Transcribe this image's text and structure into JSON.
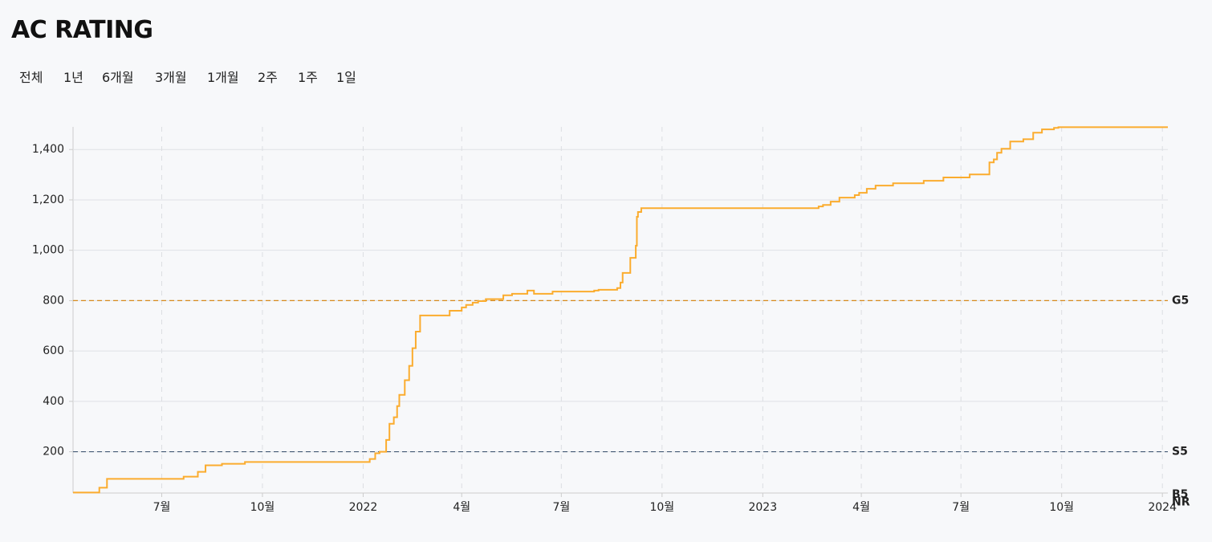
{
  "header": {
    "title": "AC RATING"
  },
  "tabs": [
    "전체",
    "1년",
    "6개월",
    "3개월",
    "1개월",
    "2주",
    "1주",
    "1일"
  ],
  "chart_data": {
    "type": "line",
    "step": true,
    "color": "#fbac2e",
    "x": [
      "2021-04-11",
      "2021-05-05",
      "2021-05-12",
      "2021-07-21",
      "2021-08-03",
      "2021-08-10",
      "2021-08-25",
      "2021-09-15",
      "2022-01-07",
      "2022-01-12",
      "2022-01-16",
      "2022-01-22",
      "2022-01-25",
      "2022-01-29",
      "2022-02-01",
      "2022-02-03",
      "2022-02-08",
      "2022-02-12",
      "2022-02-15",
      "2022-02-18",
      "2022-02-22",
      "2022-03-21",
      "2022-04-01",
      "2022-04-05",
      "2022-04-11",
      "2022-04-16",
      "2022-04-23",
      "2022-05-09",
      "2022-05-17",
      "2022-05-31",
      "2022-06-06",
      "2022-06-23",
      "2022-07-31",
      "2022-08-04",
      "2022-08-21",
      "2022-08-24",
      "2022-08-26",
      "2022-09-02",
      "2022-09-07",
      "2022-09-08",
      "2022-09-09",
      "2022-09-12",
      "2023-02-21",
      "2023-02-25",
      "2023-03-04",
      "2023-03-12",
      "2023-03-26",
      "2023-03-30",
      "2023-04-06",
      "2023-04-14",
      "2023-04-30",
      "2023-05-28",
      "2023-06-15",
      "2023-07-09",
      "2023-07-27",
      "2023-07-31",
      "2023-08-03",
      "2023-08-07",
      "2023-08-15",
      "2023-08-27",
      "2023-09-05",
      "2023-09-13",
      "2023-09-24",
      "2023-09-28"
    ],
    "values": [
      38,
      57,
      92,
      101,
      120,
      146,
      152,
      159,
      171,
      194,
      200,
      247,
      311,
      337,
      381,
      426,
      484,
      541,
      611,
      677,
      741,
      760,
      773,
      783,
      792,
      798,
      806,
      821,
      827,
      840,
      827,
      836,
      840,
      843,
      850,
      872,
      910,
      970,
      1018,
      1133,
      1152,
      1167,
      1174,
      1180,
      1193,
      1209,
      1219,
      1228,
      1244,
      1257,
      1266,
      1276,
      1289,
      1301,
      1349,
      1361,
      1387,
      1403,
      1432,
      1441,
      1467,
      1480,
      1486,
      1489
    ],
    "xlim": [
      "2021-04-11",
      "2024-01-06"
    ],
    "xticks": [
      {
        "value": "2021-07-01",
        "label": "7월"
      },
      {
        "value": "2021-10-01",
        "label": "10월"
      },
      {
        "value": "2022-01-01",
        "label": "2022"
      },
      {
        "value": "2022-04-01",
        "label": "4월"
      },
      {
        "value": "2022-07-01",
        "label": "7월"
      },
      {
        "value": "2022-10-01",
        "label": "10월"
      },
      {
        "value": "2023-01-01",
        "label": "2023"
      },
      {
        "value": "2023-04-01",
        "label": "4월"
      },
      {
        "value": "2023-07-01",
        "label": "7월"
      },
      {
        "value": "2023-10-01",
        "label": "10월"
      },
      {
        "value": "2024-01-01",
        "label": "2024"
      }
    ],
    "ylim": [
      36,
      1490
    ],
    "yticks": [
      {
        "value": 200,
        "label": "200"
      },
      {
        "value": 400,
        "label": "400"
      },
      {
        "value": 600,
        "label": "600"
      },
      {
        "value": 800,
        "label": "800"
      },
      {
        "value": 1000,
        "label": "1,000"
      },
      {
        "value": 1200,
        "label": "1,200"
      },
      {
        "value": 1400,
        "label": "1,400"
      }
    ],
    "grid": true,
    "thresholds": [
      {
        "name": "G5",
        "value": 800,
        "color": "#d68a1c"
      },
      {
        "name": "S5",
        "value": 200,
        "color": "#435a75"
      },
      {
        "name": "B5",
        "value": 30,
        "color": "#a8642a"
      },
      {
        "name": "NR",
        "value": 0,
        "color": "#2d2d2d"
      }
    ]
  }
}
